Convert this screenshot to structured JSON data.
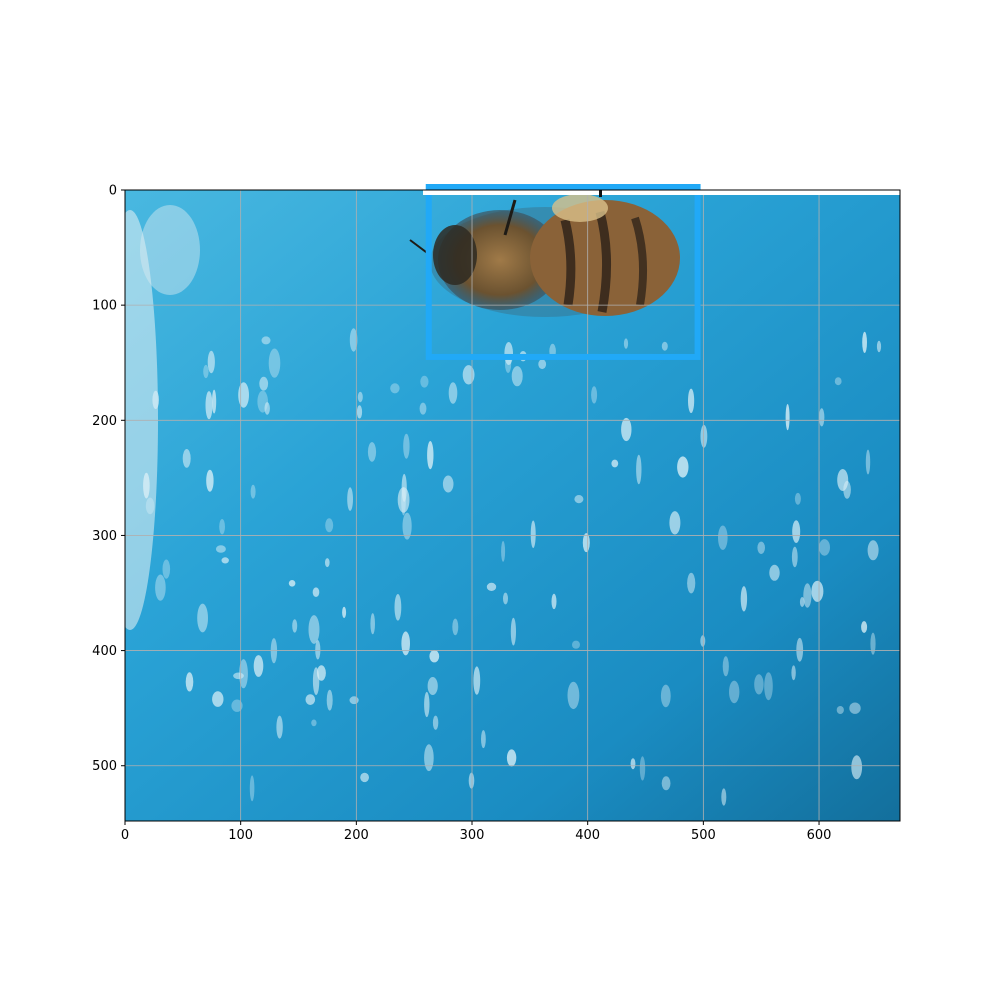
{
  "chart_data": {
    "type": "image",
    "xlim": [
      0,
      670
    ],
    "ylim": [
      548,
      0
    ],
    "x_ticks": [
      0,
      100,
      200,
      300,
      400,
      500,
      600
    ],
    "y_ticks": [
      0,
      100,
      200,
      300,
      400,
      500
    ],
    "grid": true,
    "grid_color": "#b0b0b0",
    "background_colors": [
      "#49b8e0",
      "#2aa3d6",
      "#1a8cc2",
      "#136f9c"
    ],
    "image_content": "bee on blue surface with water droplets",
    "bounding_box": {
      "x": [
        260,
        495
      ],
      "y": [
        0,
        145
      ],
      "color": "#21a9f7"
    }
  }
}
